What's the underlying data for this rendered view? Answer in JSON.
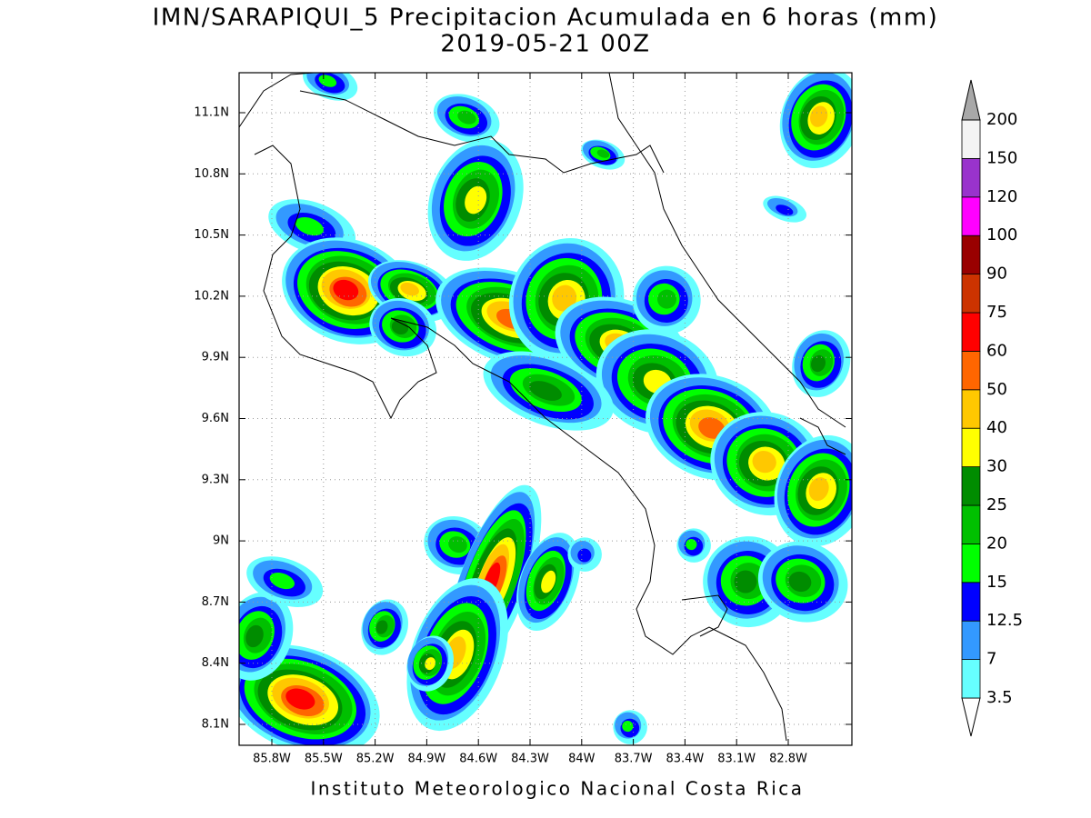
{
  "header": {
    "title": "IMN/SARAPIQUI_5 Precipitacion Acumulada en 6 horas (mm)",
    "subtitle": "2019-05-21 00Z"
  },
  "map": {
    "lat_labels": [
      "11.1N",
      "10.8N",
      "10.5N",
      "10.2N",
      "9.9N",
      "9.6N",
      "9.3N",
      "9N",
      "8.7N",
      "8.4N",
      "8.1N"
    ],
    "lon_labels": [
      "85.8W",
      "85.5W",
      "85.2W",
      "84.9W",
      "84.6W",
      "84.3W",
      "84W",
      "83.7W",
      "83.4W",
      "83.1W",
      "82.8W"
    ]
  },
  "colorbar": {
    "levels": [
      3.5,
      7,
      12.5,
      15,
      20,
      25,
      30,
      40,
      50,
      60,
      75,
      90,
      100,
      120,
      150,
      200
    ],
    "colors": [
      "#ffffff",
      "#66ffff",
      "#3399ff",
      "#0000ff",
      "#00ff00",
      "#00c000",
      "#008c00",
      "#ffff00",
      "#ffc800",
      "#ff6600",
      "#ff0000",
      "#cc3300",
      "#990000",
      "#ff00ff",
      "#9933cc",
      "#f4f4f4",
      "#a8a8a8"
    ]
  },
  "footer": "Instituto Meteorologico Nacional Costa Rica"
}
